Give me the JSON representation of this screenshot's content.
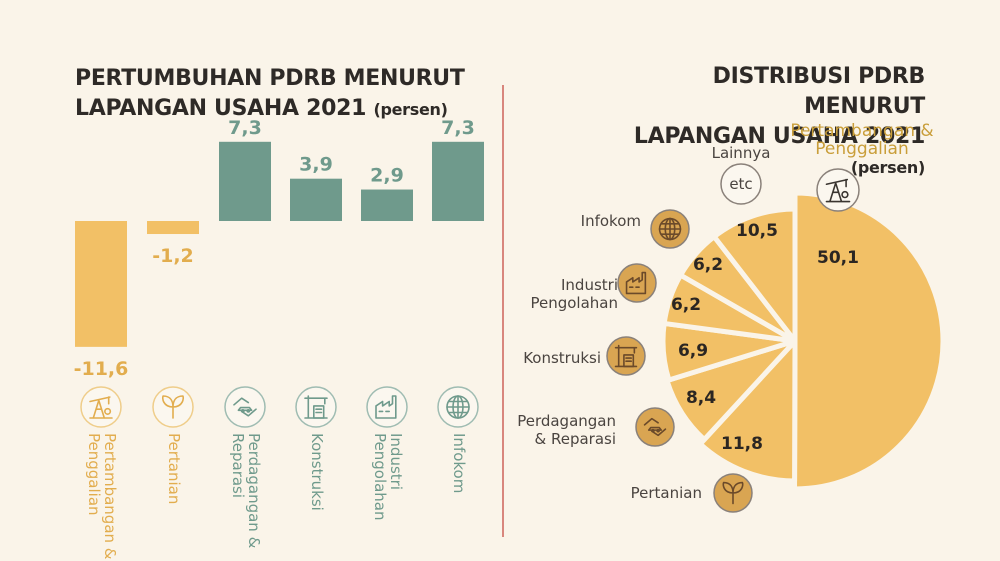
{
  "left_title": {
    "line1": "PERTUMBUHAN PDRB MENURUT",
    "line2": "LAPANGAN USAHA 2021",
    "unit": "(persen)"
  },
  "right_title": {
    "line1": "DISTRIBUSI PDRB MENURUT",
    "line2": "LAPANGAN USAHA 2021",
    "unit": "(persen)"
  },
  "colors": {
    "positive": "#6f9a8c",
    "negative": "#f2c066",
    "pie": "#f2c066",
    "background": "#faf4e9",
    "divider": "#c9574f"
  },
  "chart_data": [
    {
      "type": "bar",
      "title": "PERTUMBUHAN PDRB MENURUT LAPANGAN USAHA 2021 (persen)",
      "categories": [
        {
          "label": "Pertambangan & Penggalian",
          "icon": "oil-pump-icon"
        },
        {
          "label": "Pertanian",
          "icon": "sprout-icon"
        },
        {
          "label": "Perdagangan & Reparasi",
          "icon": "handshake-car-icon"
        },
        {
          "label": "Konstruksi",
          "icon": "crane-building-icon"
        },
        {
          "label": "Industri Pengolahan",
          "icon": "factory-icon"
        },
        {
          "label": "Infokom",
          "icon": "globe-icon"
        }
      ],
      "values": [
        -11.6,
        -1.2,
        7.3,
        3.9,
        2.9,
        7.3
      ],
      "value_labels": [
        "-11,6",
        "-1,2",
        "7,3",
        "3,9",
        "2,9",
        "7,3"
      ],
      "grid": false,
      "legend": "none"
    },
    {
      "type": "pie",
      "title": "DISTRIBUSI PDRB MENURUT LAPANGAN USAHA 2021 (persen)",
      "slices": [
        {
          "label": "Pertambangan & Penggalian",
          "value": 50.1,
          "value_label": "50,1",
          "icon": "oil-pump-icon"
        },
        {
          "label": "Pertanian",
          "value": 11.8,
          "value_label": "11,8",
          "icon": "sprout-icon"
        },
        {
          "label": "Perdagangan & Reparasi",
          "value": 8.4,
          "value_label": "8,4",
          "icon": "handshake-car-icon"
        },
        {
          "label": "Konstruksi",
          "value": 6.9,
          "value_label": "6,9",
          "icon": "crane-building-icon"
        },
        {
          "label": "Industri Pengolahan",
          "value": 6.2,
          "value_label": "6,2",
          "icon": "factory-icon"
        },
        {
          "label": "Infokom",
          "value": 6.2,
          "value_label": "6,2",
          "icon": "globe-icon"
        },
        {
          "label": "Lainnya",
          "value": 10.5,
          "value_label": "10,5",
          "icon": "etc-icon",
          "icon_text": "etc"
        }
      ],
      "legend": "none"
    }
  ]
}
